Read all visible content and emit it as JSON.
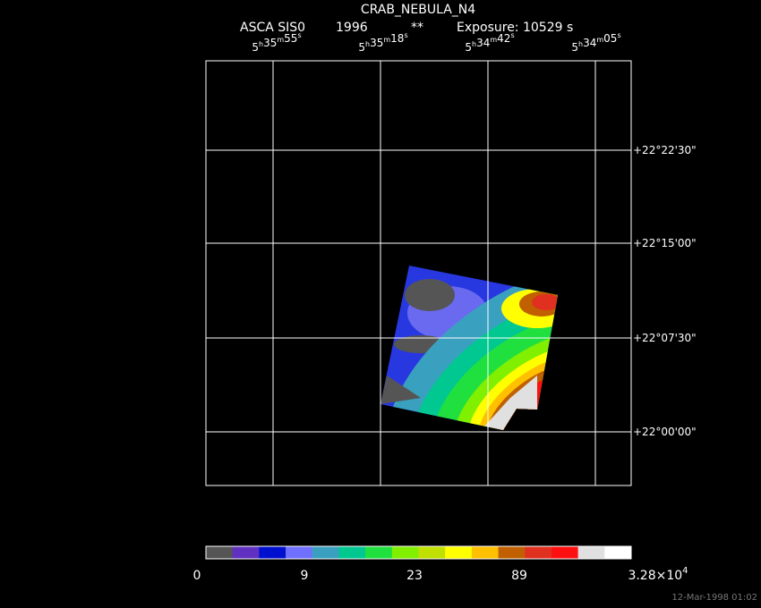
{
  "header": {
    "title": "CRAB_NEBULA_N4",
    "instrument": "ASCA SIS0",
    "year": "1996",
    "marker": "**",
    "exposure": "Exposure: 10529 s"
  },
  "ra_units": [
    "h",
    "m",
    "s"
  ],
  "ra_labels": [
    [
      "5",
      "35",
      "55"
    ],
    [
      "5",
      "35",
      "18"
    ],
    [
      "5",
      "34",
      "42"
    ],
    [
      "5",
      "34",
      "05"
    ]
  ],
  "dec_labels": [
    "+22°22'30\"",
    "+22°15'00\"",
    "+22°07'30\"",
    "+22°00'00\""
  ],
  "colorbar": {
    "colors": [
      "#555555",
      "#6030c0",
      "#0010d0",
      "#7070ff",
      "#3aa0c0",
      "#00c890",
      "#20e040",
      "#80f000",
      "#c0e000",
      "#ffff00",
      "#ffc000",
      "#c06000",
      "#e03020",
      "#ff1010",
      "#e0e0e0",
      "#ffffff"
    ],
    "labels": [
      "0",
      "9",
      "23",
      "89"
    ],
    "max_label": {
      "mantissa": "3.28×10",
      "exponent": "4"
    }
  },
  "footer": {
    "date": "12-Mar-1998 01:02"
  }
}
